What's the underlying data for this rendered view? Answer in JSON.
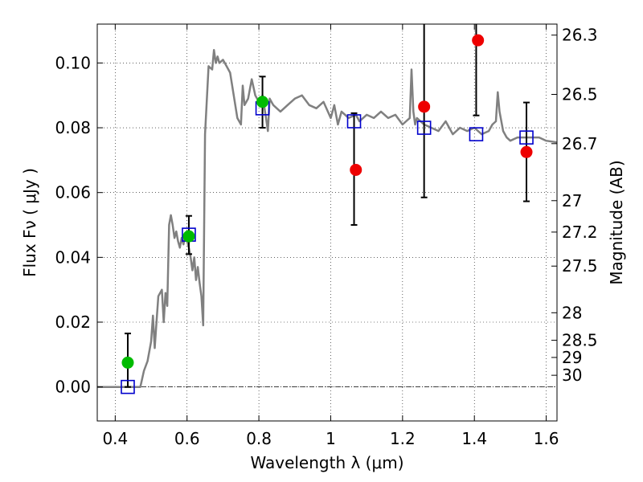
{
  "chart_data": {
    "type": "scatter",
    "xlabel": "Wavelength  λ (μm)",
    "ylabel": "Flux  Fν  ( μJy )",
    "ylabel_right": "Magnitude (AB)",
    "xlim": [
      0.35,
      1.63
    ],
    "ylim": [
      -0.0105,
      0.112
    ],
    "grid": true,
    "x_ticks": [
      0.4,
      0.6,
      0.8,
      1.0,
      1.2,
      1.4,
      1.6
    ],
    "x_tick_labels": [
      "0.4",
      "0.6",
      "0.8",
      "1",
      "1.2",
      "1.4",
      "1.6"
    ],
    "y_ticks": [
      0.0,
      0.02,
      0.04,
      0.06,
      0.08,
      0.1
    ],
    "y_tick_labels": [
      "0.00",
      "0.02",
      "0.04",
      "0.06",
      "0.08",
      "0.10"
    ],
    "right_ticks": [
      {
        "flux": 0.1086,
        "label": "26.3"
      },
      {
        "flux": 0.0903,
        "label": "26.5"
      },
      {
        "flux": 0.0751,
        "label": "26.7"
      },
      {
        "flux": 0.0575,
        "label": "27"
      },
      {
        "flux": 0.0478,
        "label": "27.2"
      },
      {
        "flux": 0.0373,
        "label": "27.5"
      },
      {
        "flux": 0.0229,
        "label": "28"
      },
      {
        "flux": 0.0144,
        "label": "28.5"
      },
      {
        "flux": 0.0091,
        "label": "29"
      },
      {
        "flux": 0.0036,
        "label": "30"
      }
    ],
    "baseline": 0.0,
    "series": [
      {
        "kind": "line",
        "color": "#808080",
        "x": [
          0.35,
          0.47,
          0.48,
          0.49,
          0.5,
          0.505,
          0.51,
          0.515,
          0.52,
          0.53,
          0.535,
          0.54,
          0.545,
          0.55,
          0.555,
          0.56,
          0.565,
          0.57,
          0.575,
          0.58,
          0.585,
          0.59,
          0.595,
          0.6,
          0.605,
          0.61,
          0.615,
          0.62,
          0.625,
          0.63,
          0.635,
          0.64,
          0.645,
          0.65,
          0.66,
          0.67,
          0.675,
          0.68,
          0.685,
          0.69,
          0.7,
          0.71,
          0.72,
          0.74,
          0.75,
          0.755,
          0.76,
          0.77,
          0.78,
          0.79,
          0.8,
          0.81,
          0.82,
          0.825,
          0.83,
          0.84,
          0.86,
          0.88,
          0.9,
          0.92,
          0.94,
          0.96,
          0.98,
          1.0,
          1.01,
          1.02,
          1.03,
          1.05,
          1.07,
          1.08,
          1.1,
          1.12,
          1.14,
          1.16,
          1.18,
          1.2,
          1.22,
          1.225,
          1.23,
          1.235,
          1.24,
          1.26,
          1.28,
          1.3,
          1.32,
          1.34,
          1.36,
          1.38,
          1.4,
          1.42,
          1.44,
          1.45,
          1.46,
          1.465,
          1.47,
          1.48,
          1.49,
          1.5,
          1.52,
          1.54,
          1.56,
          1.58,
          1.6,
          1.63
        ],
        "y": [
          0.0,
          0.0,
          0.005,
          0.008,
          0.014,
          0.022,
          0.012,
          0.02,
          0.028,
          0.03,
          0.02,
          0.029,
          0.025,
          0.05,
          0.053,
          0.05,
          0.046,
          0.048,
          0.045,
          0.043,
          0.046,
          0.044,
          0.047,
          0.045,
          0.043,
          0.04,
          0.036,
          0.04,
          0.033,
          0.037,
          0.032,
          0.028,
          0.019,
          0.078,
          0.099,
          0.098,
          0.104,
          0.1,
          0.102,
          0.1,
          0.101,
          0.099,
          0.097,
          0.083,
          0.081,
          0.093,
          0.087,
          0.089,
          0.095,
          0.09,
          0.088,
          0.09,
          0.083,
          0.079,
          0.089,
          0.087,
          0.085,
          0.087,
          0.089,
          0.09,
          0.087,
          0.086,
          0.088,
          0.083,
          0.087,
          0.081,
          0.085,
          0.083,
          0.084,
          0.082,
          0.084,
          0.083,
          0.085,
          0.083,
          0.084,
          0.081,
          0.083,
          0.098,
          0.085,
          0.081,
          0.083,
          0.081,
          0.08,
          0.079,
          0.082,
          0.078,
          0.08,
          0.079,
          0.08,
          0.078,
          0.079,
          0.081,
          0.082,
          0.091,
          0.085,
          0.079,
          0.077,
          0.076,
          0.077,
          0.077,
          0.077,
          0.077,
          0.076,
          0.0755
        ]
      },
      {
        "kind": "points",
        "marker": "square-open",
        "color": "#0000cc",
        "x": [
          0.435,
          0.605,
          0.81,
          1.065,
          1.26,
          1.405,
          1.545
        ],
        "y": [
          0.0,
          0.047,
          0.086,
          0.082,
          0.08,
          0.078,
          0.077
        ]
      },
      {
        "kind": "points",
        "marker": "circle-filled",
        "color": "#00bb00",
        "x": [
          0.435,
          0.605,
          0.81
        ],
        "y": [
          0.0075,
          0.0465,
          0.088
        ]
      },
      {
        "kind": "points",
        "marker": "circle-filled",
        "color": "#ee0000",
        "x": [
          1.07,
          1.26,
          1.41,
          1.545
        ],
        "y": [
          0.067,
          0.0865,
          0.107,
          0.0725
        ]
      }
    ],
    "errorbars": [
      {
        "x": 0.435,
        "low": 0.0,
        "high": 0.0165
      },
      {
        "x": 0.605,
        "low": 0.041,
        "high": 0.0528
      },
      {
        "x": 0.81,
        "low": 0.08,
        "high": 0.0958
      },
      {
        "x": 1.065,
        "low": 0.05,
        "high": 0.0845
      },
      {
        "x": 1.26,
        "low": 0.0585,
        "high": 0.114
      },
      {
        "x": 1.405,
        "low": 0.0838,
        "high": 0.114
      },
      {
        "x": 1.545,
        "low": 0.0573,
        "high": 0.0878
      }
    ]
  }
}
